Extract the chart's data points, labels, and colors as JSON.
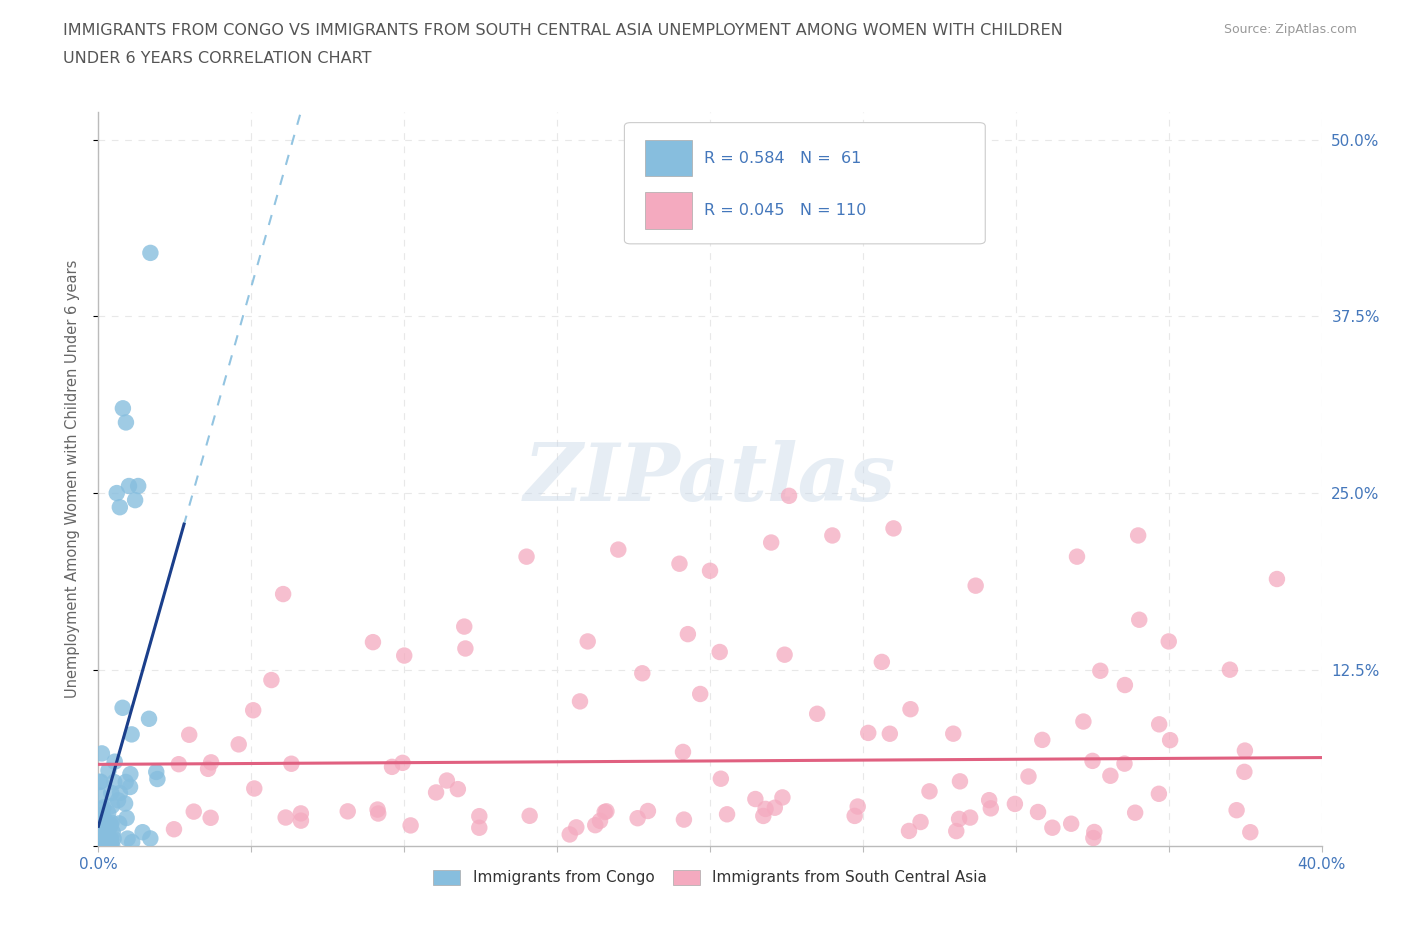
{
  "title_line1": "IMMIGRANTS FROM CONGO VS IMMIGRANTS FROM SOUTH CENTRAL ASIA UNEMPLOYMENT AMONG WOMEN WITH CHILDREN",
  "title_line2": "UNDER 6 YEARS CORRELATION CHART",
  "source": "Source: ZipAtlas.com",
  "ylabel": "Unemployment Among Women with Children Under 6 years",
  "xlim": [
    0.0,
    0.42
  ],
  "ylim": [
    -0.02,
    0.54
  ],
  "plot_xlim": [
    0.0,
    0.4
  ],
  "plot_ylim": [
    0.0,
    0.52
  ],
  "xticks": [
    0.0,
    0.05,
    0.1,
    0.15,
    0.2,
    0.25,
    0.3,
    0.35,
    0.4
  ],
  "ytick_positions": [
    0.0,
    0.125,
    0.25,
    0.375,
    0.5
  ],
  "ytick_labels_right": [
    "",
    "12.5%",
    "25.0%",
    "37.5%",
    "50.0%"
  ],
  "congo_R": 0.584,
  "congo_N": 61,
  "sca_R": 0.045,
  "sca_N": 110,
  "congo_color": "#87BEDE",
  "sca_color": "#F4AABF",
  "congo_line_color": "#1B3F8B",
  "sca_line_color": "#E06080",
  "congo_dash_color": "#87BEDE",
  "watermark_text": "ZIPatlas",
  "background_color": "#ffffff",
  "grid_color": "#e8e8e8",
  "title_color": "#555555",
  "axis_color": "#4477bb",
  "legend_text_color": "#333333",
  "legend_rn_color": "#4477bb"
}
